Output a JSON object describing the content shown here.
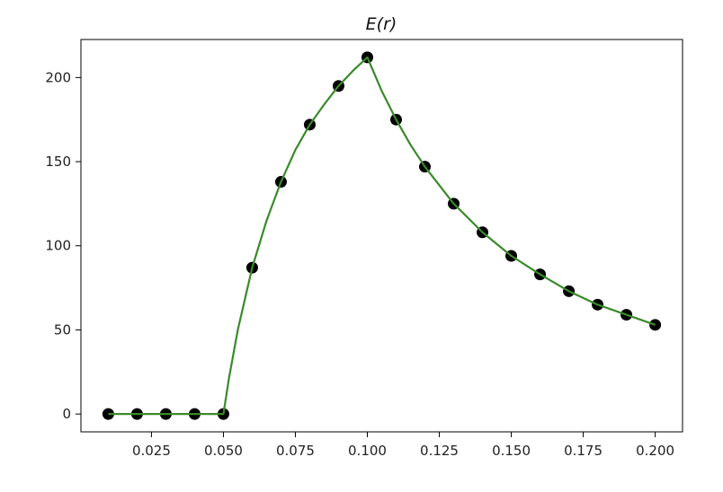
{
  "chart_data": {
    "type": "scatter",
    "title": "E(r)",
    "xlabel": "",
    "ylabel": "",
    "xlim": [
      0.0005,
      0.2095
    ],
    "ylim": [
      -10.6,
      222.6
    ],
    "grid": false,
    "x_ticks": [
      "0.025",
      "0.050",
      "0.075",
      "0.100",
      "0.125",
      "0.150",
      "0.175",
      "0.200"
    ],
    "y_ticks": [
      "0",
      "50",
      "100",
      "150",
      "200"
    ],
    "series": [
      {
        "kind": "points",
        "color": "#000000",
        "x": [
          0.01,
          0.02,
          0.03,
          0.04,
          0.05,
          0.06,
          0.07,
          0.08,
          0.09,
          0.1,
          0.11,
          0.12,
          0.13,
          0.14,
          0.15,
          0.16,
          0.17,
          0.18,
          0.19,
          0.2
        ],
        "y": [
          0,
          0,
          0,
          0,
          0,
          87,
          138,
          172,
          195,
          212,
          175,
          147,
          125,
          108,
          94,
          83,
          73,
          65,
          59,
          53
        ]
      },
      {
        "kind": "line",
        "color": "#3a8a2a",
        "x": [
          0.01,
          0.02,
          0.03,
          0.04,
          0.05,
          0.052,
          0.055,
          0.06,
          0.065,
          0.07,
          0.075,
          0.08,
          0.085,
          0.09,
          0.095,
          0.1,
          0.105,
          0.11,
          0.115,
          0.12,
          0.13,
          0.14,
          0.15,
          0.16,
          0.17,
          0.18,
          0.19,
          0.2
        ],
        "y": [
          0,
          0,
          0,
          0,
          0,
          22,
          50,
          87,
          115,
          138,
          157,
          172,
          184,
          195,
          204,
          212,
          192,
          175,
          160,
          147,
          125,
          108,
          94,
          83,
          73,
          65,
          59,
          53
        ]
      }
    ]
  }
}
